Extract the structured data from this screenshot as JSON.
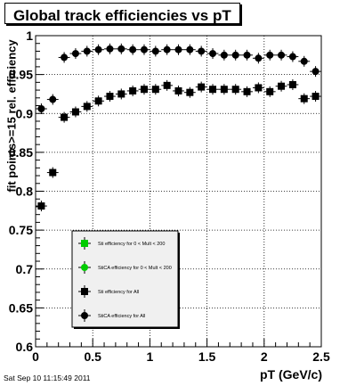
{
  "title": "Global track efficiencies vs pT",
  "timestamp": "Sat Sep 10 11:15:49 2011",
  "chart_data": {
    "type": "scatter",
    "title": "Global track efficiencies vs pT",
    "xlabel": "pT (GeV/c)",
    "ylabel": "fit points>=15 rel. efficiency",
    "xlim": [
      0,
      2.5
    ],
    "ylim": [
      0.6,
      1.0
    ],
    "xticks": [
      "0",
      "0.5",
      "1",
      "1.5",
      "2",
      "2.5"
    ],
    "yticks": [
      "0.6",
      "0.65",
      "0.7",
      "0.75",
      "0.8",
      "0.85",
      "0.9",
      "0.95",
      "1"
    ],
    "grid": true,
    "legend_position": "bottom-left",
    "series": [
      {
        "name": "Sti efficiency  for 0 < Mult < 200",
        "marker": "square",
        "color": "#00cc00",
        "x": [],
        "y": []
      },
      {
        "name": "StiCA efficiency  for 0 < Mult < 200",
        "marker": "circle",
        "color": "#00cc00",
        "x": [],
        "y": []
      },
      {
        "name": "Sti efficiency  for All",
        "marker": "square",
        "color": "#000000",
        "x": [
          0.05,
          0.15,
          0.25,
          0.35,
          0.45,
          0.55,
          0.65,
          0.75,
          0.85,
          0.95,
          1.05,
          1.15,
          1.25,
          1.35,
          1.45,
          1.55,
          1.65,
          1.75,
          1.85,
          1.95,
          2.05,
          2.15,
          2.25,
          2.35,
          2.45
        ],
        "y": [
          0.781,
          0.824,
          0.895,
          0.902,
          0.909,
          0.916,
          0.922,
          0.925,
          0.929,
          0.931,
          0.931,
          0.936,
          0.929,
          0.927,
          0.934,
          0.931,
          0.931,
          0.931,
          0.928,
          0.933,
          0.928,
          0.935,
          0.937,
          0.919,
          0.922
        ]
      },
      {
        "name": "StiCA efficiency  for All",
        "marker": "circle",
        "color": "#000000",
        "x": [
          0.05,
          0.15,
          0.25,
          0.35,
          0.45,
          0.55,
          0.65,
          0.75,
          0.85,
          0.95,
          1.05,
          1.15,
          1.25,
          1.35,
          1.45,
          1.55,
          1.65,
          1.75,
          1.85,
          1.95,
          2.05,
          2.15,
          2.25,
          2.35,
          2.45
        ],
        "y": [
          0.906,
          0.918,
          0.972,
          0.977,
          0.98,
          0.982,
          0.983,
          0.983,
          0.982,
          0.982,
          0.98,
          0.982,
          0.982,
          0.982,
          0.98,
          0.977,
          0.975,
          0.975,
          0.975,
          0.971,
          0.975,
          0.975,
          0.973,
          0.967,
          0.954
        ]
      }
    ]
  }
}
